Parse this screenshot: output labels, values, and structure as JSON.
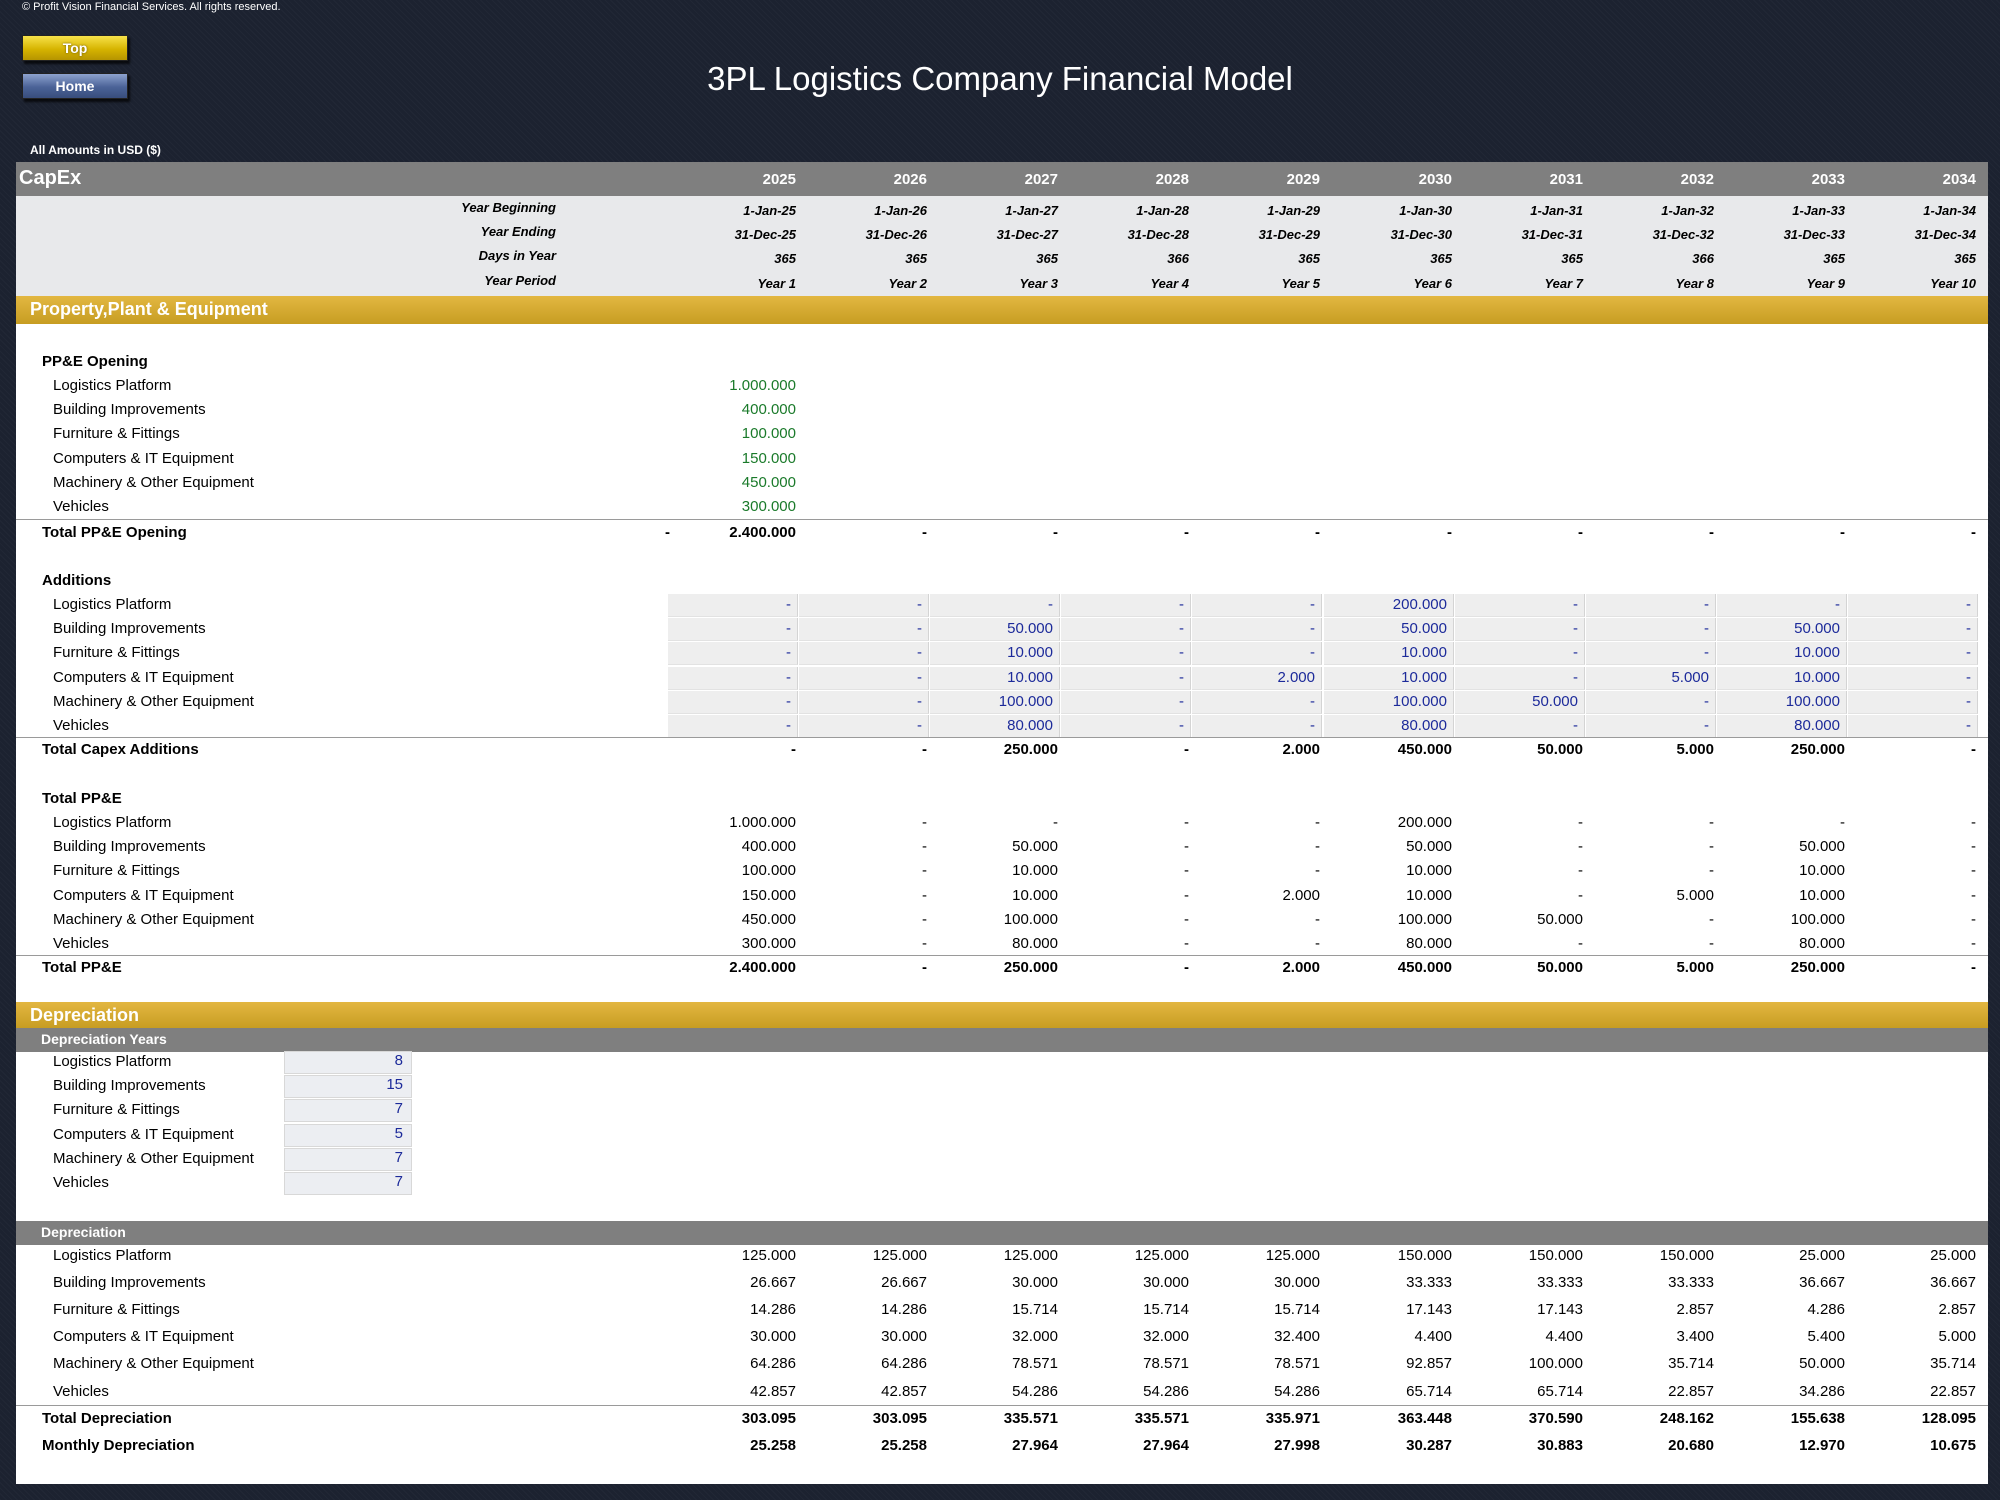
{
  "copyright": "© Profit Vision Financial Services. All rights reserved.",
  "nav": {
    "top_label": "Top",
    "home_label": "Home"
  },
  "title": "3PL Logistics Company Financial Model",
  "amounts_note": "All Amounts in  USD ($)",
  "sheet_name": "CapEx",
  "years": [
    "2025",
    "2026",
    "2027",
    "2028",
    "2029",
    "2030",
    "2031",
    "2032",
    "2033",
    "2034"
  ],
  "info_rows": [
    {
      "label": "Year Beginning",
      "values": [
        "1-Jan-25",
        "1-Jan-26",
        "1-Jan-27",
        "1-Jan-28",
        "1-Jan-29",
        "1-Jan-30",
        "1-Jan-31",
        "1-Jan-32",
        "1-Jan-33",
        "1-Jan-34"
      ]
    },
    {
      "label": "Year Ending",
      "values": [
        "31-Dec-25",
        "31-Dec-26",
        "31-Dec-27",
        "31-Dec-28",
        "31-Dec-29",
        "31-Dec-30",
        "31-Dec-31",
        "31-Dec-32",
        "31-Dec-33",
        "31-Dec-34"
      ]
    },
    {
      "label": "Days in Year",
      "values": [
        "365",
        "365",
        "365",
        "366",
        "365",
        "365",
        "365",
        "366",
        "365",
        "365"
      ]
    },
    {
      "label": "Year Period",
      "values": [
        "Year 1",
        "Year 2",
        "Year 3",
        "Year 4",
        "Year 5",
        "Year 6",
        "Year 7",
        "Year 8",
        "Year 9",
        "Year 10"
      ]
    }
  ],
  "ppe_section": "Property,Plant & Equipment",
  "ppe_opening": {
    "heading": "PP&E Opening",
    "items": [
      {
        "label": "Logistics Platform",
        "value": "1.000.000"
      },
      {
        "label": "Building Improvements",
        "value": "400.000"
      },
      {
        "label": "Furniture & Fittings",
        "value": "100.000"
      },
      {
        "label": "Computers & IT Equipment",
        "value": "150.000"
      },
      {
        "label": "Machinery & Other Equipment",
        "value": "450.000"
      },
      {
        "label": "Vehicles",
        "value": "300.000"
      }
    ],
    "total_label": "Total PP&E Opening",
    "total_pre": "-",
    "total_values": [
      "2.400.000",
      "-",
      "-",
      "-",
      "-",
      "-",
      "-",
      "-",
      "-",
      "-"
    ]
  },
  "additions": {
    "heading": "Additions",
    "items": [
      {
        "label": "Logistics Platform",
        "values": [
          "-",
          "-",
          "-",
          "-",
          "-",
          "200.000",
          "-",
          "-",
          "-",
          "-"
        ]
      },
      {
        "label": "Building Improvements",
        "values": [
          "-",
          "-",
          "50.000",
          "-",
          "-",
          "50.000",
          "-",
          "-",
          "50.000",
          "-"
        ]
      },
      {
        "label": "Furniture & Fittings",
        "values": [
          "-",
          "-",
          "10.000",
          "-",
          "-",
          "10.000",
          "-",
          "-",
          "10.000",
          "-"
        ]
      },
      {
        "label": "Computers & IT Equipment",
        "values": [
          "-",
          "-",
          "10.000",
          "-",
          "2.000",
          "10.000",
          "-",
          "5.000",
          "10.000",
          "-"
        ]
      },
      {
        "label": "Machinery & Other Equipment",
        "values": [
          "-",
          "-",
          "100.000",
          "-",
          "-",
          "100.000",
          "50.000",
          "-",
          "100.000",
          "-"
        ]
      },
      {
        "label": "Vehicles",
        "values": [
          "-",
          "-",
          "80.000",
          "-",
          "-",
          "80.000",
          "-",
          "-",
          "80.000",
          "-"
        ]
      }
    ],
    "total_label": "Total Capex Additions",
    "total_values": [
      "-",
      "-",
      "250.000",
      "-",
      "2.000",
      "450.000",
      "50.000",
      "5.000",
      "250.000",
      "-"
    ]
  },
  "total_ppe": {
    "heading": "Total PP&E",
    "items": [
      {
        "label": "Logistics Platform",
        "values": [
          "1.000.000",
          "-",
          "-",
          "-",
          "-",
          "200.000",
          "-",
          "-",
          "-",
          "-"
        ]
      },
      {
        "label": "Building Improvements",
        "values": [
          "400.000",
          "-",
          "50.000",
          "-",
          "-",
          "50.000",
          "-",
          "-",
          "50.000",
          "-"
        ]
      },
      {
        "label": "Furniture & Fittings",
        "values": [
          "100.000",
          "-",
          "10.000",
          "-",
          "-",
          "10.000",
          "-",
          "-",
          "10.000",
          "-"
        ]
      },
      {
        "label": "Computers & IT Equipment",
        "values": [
          "150.000",
          "-",
          "10.000",
          "-",
          "2.000",
          "10.000",
          "-",
          "5.000",
          "10.000",
          "-"
        ]
      },
      {
        "label": "Machinery & Other Equipment",
        "values": [
          "450.000",
          "-",
          "100.000",
          "-",
          "-",
          "100.000",
          "50.000",
          "-",
          "100.000",
          "-"
        ]
      },
      {
        "label": "Vehicles",
        "values": [
          "300.000",
          "-",
          "80.000",
          "-",
          "-",
          "80.000",
          "-",
          "-",
          "80.000",
          "-"
        ]
      }
    ],
    "total_label": "Total PP&E",
    "total_values": [
      "2.400.000",
      "-",
      "250.000",
      "-",
      "2.000",
      "450.000",
      "50.000",
      "5.000",
      "250.000",
      "-"
    ]
  },
  "depreciation_section": "Depreciation",
  "dep_years": {
    "heading": "Depreciation Years",
    "items": [
      {
        "label": "Logistics Platform",
        "value": "8"
      },
      {
        "label": "Building Improvements",
        "value": "15"
      },
      {
        "label": "Furniture & Fittings",
        "value": "7"
      },
      {
        "label": "Computers & IT Equipment",
        "value": "5"
      },
      {
        "label": "Machinery & Other Equipment",
        "value": "7"
      },
      {
        "label": "Vehicles",
        "value": "7"
      }
    ]
  },
  "depreciation": {
    "heading": "Depreciation",
    "items": [
      {
        "label": "Logistics Platform",
        "values": [
          "125.000",
          "125.000",
          "125.000",
          "125.000",
          "125.000",
          "150.000",
          "150.000",
          "150.000",
          "25.000",
          "25.000"
        ]
      },
      {
        "label": "Building Improvements",
        "values": [
          "26.667",
          "26.667",
          "30.000",
          "30.000",
          "30.000",
          "33.333",
          "33.333",
          "33.333",
          "36.667",
          "36.667"
        ]
      },
      {
        "label": "Furniture & Fittings",
        "values": [
          "14.286",
          "14.286",
          "15.714",
          "15.714",
          "15.714",
          "17.143",
          "17.143",
          "2.857",
          "4.286",
          "2.857"
        ]
      },
      {
        "label": "Computers & IT Equipment",
        "values": [
          "30.000",
          "30.000",
          "32.000",
          "32.000",
          "32.400",
          "4.400",
          "4.400",
          "3.400",
          "5.400",
          "5.000"
        ]
      },
      {
        "label": "Machinery & Other Equipment",
        "values": [
          "64.286",
          "64.286",
          "78.571",
          "78.571",
          "78.571",
          "92.857",
          "100.000",
          "35.714",
          "50.000",
          "35.714"
        ]
      },
      {
        "label": "Vehicles",
        "values": [
          "42.857",
          "42.857",
          "54.286",
          "54.286",
          "54.286",
          "65.714",
          "65.714",
          "22.857",
          "34.286",
          "22.857"
        ]
      }
    ],
    "total_label": "Total Depreciation",
    "total_values": [
      "303.095",
      "303.095",
      "335.571",
      "335.571",
      "335.971",
      "363.448",
      "370.590",
      "248.162",
      "155.638",
      "128.095"
    ],
    "monthly_label": "Monthly Depreciation",
    "monthly_values": [
      "25.258",
      "25.258",
      "27.964",
      "27.964",
      "27.998",
      "30.287",
      "30.883",
      "20.680",
      "12.970",
      "10.675"
    ]
  }
}
